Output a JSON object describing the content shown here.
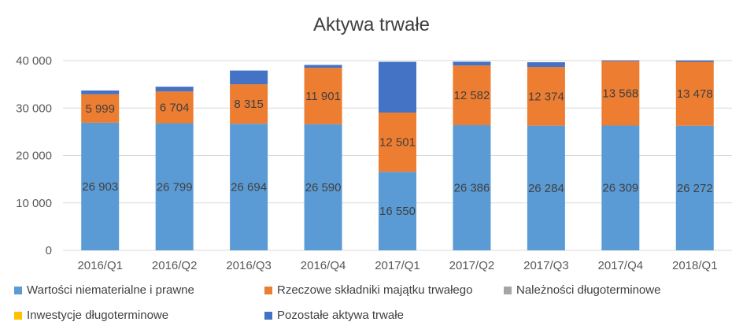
{
  "chart_data": {
    "type": "bar",
    "stacked": true,
    "title": "Aktywa trwałe",
    "xlabel": "",
    "ylabel": "",
    "ylim": [
      0,
      40000
    ],
    "yticks": [
      0,
      10000,
      20000,
      30000,
      40000
    ],
    "ytick_labels": [
      "0",
      "10 000",
      "20 000",
      "30 000",
      "40 000"
    ],
    "grid": true,
    "legend_position": "bottom",
    "categories": [
      "2016/Q1",
      "2016/Q2",
      "2016/Q3",
      "2016/Q4",
      "2017/Q1",
      "2017/Q2",
      "2017/Q3",
      "2017/Q4",
      "2018/Q1"
    ],
    "series": [
      {
        "name": "Wartości niematerialne i prawne",
        "color": "#5B9BD5",
        "values": [
          26903,
          26799,
          26694,
          26590,
          16550,
          26386,
          26284,
          26309,
          26272
        ],
        "labels": [
          "26 903",
          "26 799",
          "26 694",
          "26 590",
          "16 550",
          "26 386",
          "26 284",
          "26 309",
          "26 272"
        ]
      },
      {
        "name": "Rzeczowe składniki majątku trwałego",
        "color": "#ED7D31",
        "values": [
          5999,
          6704,
          8315,
          11901,
          12501,
          12582,
          12374,
          13568,
          13478
        ],
        "labels": [
          "5 999",
          "6 704",
          "8 315",
          "11 901",
          "12 501",
          "12 582",
          "12 374",
          "13 568",
          "13 478"
        ]
      },
      {
        "name": "Należności długoterminowe",
        "color": "#A5A5A5",
        "values": [
          0,
          0,
          0,
          0,
          0,
          0,
          0,
          0,
          0
        ]
      },
      {
        "name": "Inwestycje długoterminowe",
        "color": "#FFC000",
        "values": [
          0,
          0,
          0,
          0,
          0,
          0,
          0,
          0,
          0
        ]
      },
      {
        "name": "Pozostałe aktywa trwałe",
        "color": "#4472C4",
        "values": [
          800,
          1000,
          2900,
          600,
          10700,
          800,
          1000,
          200,
          300
        ]
      }
    ]
  }
}
